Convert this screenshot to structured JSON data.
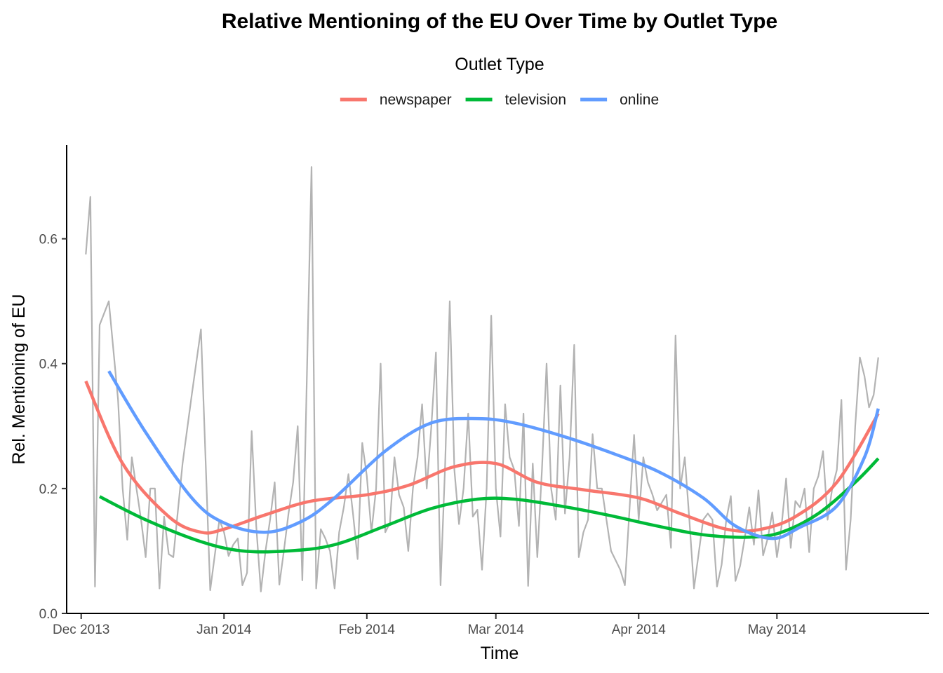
{
  "chart_data": {
    "type": "line",
    "title": "Relative Mentioning of the EU Over Time by Outlet Type",
    "xlabel": "Time",
    "ylabel": "Rel. Mentioning of EU",
    "legend": {
      "title": "Outlet Type",
      "position": "top"
    },
    "xlim": [
      "2013-11-28",
      "2014-06-03"
    ],
    "ylim": [
      0,
      0.75
    ],
    "x_ticks": [
      "2013-12-01",
      "2014-01-01",
      "2014-02-01",
      "2014-03-01",
      "2014-04-01",
      "2014-05-01"
    ],
    "x_tick_labels": [
      "Dec 2013",
      "Jan 2014",
      "Feb 2014",
      "Mar 2014",
      "Apr 2014",
      "May 2014"
    ],
    "y_ticks": [
      0,
      0.2,
      0.4,
      0.6
    ],
    "y_tick_labels": [
      "0.0",
      "0.2",
      "0.4",
      "0.6"
    ],
    "grid": false,
    "raw_series": {
      "color": "#b3b3b3",
      "x": [
        "2013-12-02",
        "2013-12-03",
        "2013-12-04",
        "2013-12-05",
        "2013-12-07",
        "2013-12-09",
        "2013-12-10",
        "2013-12-11",
        "2013-12-12",
        "2013-12-14",
        "2013-12-15",
        "2013-12-16",
        "2013-12-17",
        "2013-12-18",
        "2013-12-19",
        "2013-12-20",
        "2013-12-21",
        "2013-12-23",
        "2013-12-25",
        "2013-12-27",
        "2013-12-29",
        "2013-12-31",
        "2014-01-01",
        "2014-01-02",
        "2014-01-03",
        "2014-01-04",
        "2014-01-05",
        "2014-01-06",
        "2014-01-07",
        "2014-01-08",
        "2014-01-09",
        "2014-01-10",
        "2014-01-11",
        "2014-01-12",
        "2014-01-13",
        "2014-01-14",
        "2014-01-15",
        "2014-01-16",
        "2014-01-17",
        "2014-01-18",
        "2014-01-20",
        "2014-01-21",
        "2014-01-22",
        "2014-01-23",
        "2014-01-24",
        "2014-01-25",
        "2014-01-26",
        "2014-01-27",
        "2014-01-28",
        "2014-01-29",
        "2014-01-30",
        "2014-01-31",
        "2014-02-01",
        "2014-02-02",
        "2014-02-03",
        "2014-02-04",
        "2014-02-05",
        "2014-02-06",
        "2014-02-07",
        "2014-02-08",
        "2014-02-09",
        "2014-02-10",
        "2014-02-11",
        "2014-02-12",
        "2014-02-13",
        "2014-02-14",
        "2014-02-15",
        "2014-02-16",
        "2014-02-17",
        "2014-02-18",
        "2014-02-19",
        "2014-02-20",
        "2014-02-21",
        "2014-02-22",
        "2014-02-23",
        "2014-02-24",
        "2014-02-25",
        "2014-02-26",
        "2014-02-27",
        "2014-02-28",
        "2014-03-01",
        "2014-03-02",
        "2014-03-03",
        "2014-03-04",
        "2014-03-05",
        "2014-03-06",
        "2014-03-07",
        "2014-03-08",
        "2014-03-09",
        "2014-03-10",
        "2014-03-11",
        "2014-03-12",
        "2014-03-13",
        "2014-03-14",
        "2014-03-15",
        "2014-03-16",
        "2014-03-17",
        "2014-03-18",
        "2014-03-19",
        "2014-03-20",
        "2014-03-21",
        "2014-03-22",
        "2014-03-23",
        "2014-03-24",
        "2014-03-26",
        "2014-03-28",
        "2014-03-29",
        "2014-03-31",
        "2014-04-01",
        "2014-04-02",
        "2014-04-03",
        "2014-04-04",
        "2014-04-05",
        "2014-04-07",
        "2014-04-08",
        "2014-04-09",
        "2014-04-10",
        "2014-04-11",
        "2014-04-12",
        "2014-04-13",
        "2014-04-15",
        "2014-04-16",
        "2014-04-17",
        "2014-04-18",
        "2014-04-19",
        "2014-04-20",
        "2014-04-21",
        "2014-04-22",
        "2014-04-23",
        "2014-04-24",
        "2014-04-25",
        "2014-04-26",
        "2014-04-27",
        "2014-04-28",
        "2014-04-29",
        "2014-04-30",
        "2014-05-01",
        "2014-05-02",
        "2014-05-03",
        "2014-05-04",
        "2014-05-05",
        "2014-05-06",
        "2014-05-07",
        "2014-05-08",
        "2014-05-09",
        "2014-05-10",
        "2014-05-11",
        "2014-05-12",
        "2014-05-13",
        "2014-05-14",
        "2014-05-15",
        "2014-05-16",
        "2014-05-17",
        "2014-05-18",
        "2014-05-19",
        "2014-05-20",
        "2014-05-21",
        "2014-05-22",
        "2014-05-23"
      ],
      "y": [
        0.575,
        0.667,
        0.043,
        0.462,
        0.5,
        0.343,
        0.2,
        0.118,
        0.25,
        0.15,
        0.09,
        0.2,
        0.2,
        0.04,
        0.155,
        0.095,
        0.09,
        0.24,
        0.35,
        0.455,
        0.037,
        0.15,
        0.13,
        0.092,
        0.11,
        0.12,
        0.045,
        0.065,
        0.292,
        0.14,
        0.035,
        0.1,
        0.15,
        0.21,
        0.046,
        0.1,
        0.16,
        0.21,
        0.3,
        0.053,
        0.715,
        0.04,
        0.135,
        0.12,
        0.1,
        0.04,
        0.13,
        0.17,
        0.223,
        0.16,
        0.087,
        0.273,
        0.22,
        0.13,
        0.2,
        0.4,
        0.13,
        0.145,
        0.25,
        0.19,
        0.17,
        0.1,
        0.2,
        0.25,
        0.335,
        0.2,
        0.3,
        0.418,
        0.045,
        0.24,
        0.5,
        0.23,
        0.143,
        0.2,
        0.32,
        0.155,
        0.166,
        0.07,
        0.2,
        0.477,
        0.2,
        0.123,
        0.335,
        0.25,
        0.23,
        0.14,
        0.32,
        0.044,
        0.24,
        0.09,
        0.23,
        0.4,
        0.2,
        0.15,
        0.365,
        0.16,
        0.25,
        0.43,
        0.09,
        0.13,
        0.15,
        0.287,
        0.2,
        0.2,
        0.1,
        0.07,
        0.045,
        0.286,
        0.15,
        0.25,
        0.21,
        0.19,
        0.165,
        0.19,
        0.105,
        0.445,
        0.2,
        0.25,
        0.15,
        0.04,
        0.15,
        0.16,
        0.15,
        0.043,
        0.078,
        0.15,
        0.188,
        0.052,
        0.076,
        0.12,
        0.17,
        0.11,
        0.197,
        0.093,
        0.12,
        0.162,
        0.09,
        0.14,
        0.216,
        0.105,
        0.18,
        0.17,
        0.2,
        0.098,
        0.2,
        0.22,
        0.26,
        0.15,
        0.2,
        0.23,
        0.342,
        0.07,
        0.15,
        0.3,
        0.41,
        0.38,
        0.33,
        0.35,
        0.41
      ]
    },
    "series": [
      {
        "name": "newspaper",
        "color": "#F8766D",
        "x": [
          "2013-12-02",
          "2013-12-10",
          "2013-12-20",
          "2013-12-27",
          "2014-01-01",
          "2014-01-10",
          "2014-01-20",
          "2014-02-01",
          "2014-02-10",
          "2014-02-20",
          "2014-03-01",
          "2014-03-10",
          "2014-03-20",
          "2014-04-01",
          "2014-04-10",
          "2014-04-20",
          "2014-04-27",
          "2014-05-05",
          "2014-05-14",
          "2014-05-23"
        ],
        "y": [
          0.372,
          0.24,
          0.155,
          0.13,
          0.135,
          0.158,
          0.18,
          0.19,
          0.205,
          0.235,
          0.24,
          0.21,
          0.198,
          0.185,
          0.16,
          0.135,
          0.134,
          0.155,
          0.21,
          0.32
        ]
      },
      {
        "name": "television",
        "color": "#00BA38",
        "x": [
          "2013-12-05",
          "2013-12-15",
          "2013-12-27",
          "2014-01-05",
          "2014-01-15",
          "2014-01-25",
          "2014-02-05",
          "2014-02-15",
          "2014-02-25",
          "2014-03-05",
          "2014-03-15",
          "2014-03-25",
          "2014-04-05",
          "2014-04-15",
          "2014-04-25",
          "2014-05-02",
          "2014-05-10",
          "2014-05-18",
          "2014-05-23"
        ],
        "y": [
          0.187,
          0.15,
          0.115,
          0.1,
          0.1,
          0.11,
          0.14,
          0.168,
          0.183,
          0.183,
          0.172,
          0.158,
          0.14,
          0.126,
          0.122,
          0.13,
          0.16,
          0.21,
          0.248
        ]
      },
      {
        "name": "online",
        "color": "#619CFF",
        "x": [
          "2013-12-07",
          "2013-12-15",
          "2013-12-25",
          "2014-01-01",
          "2014-01-10",
          "2014-01-18",
          "2014-01-25",
          "2014-02-05",
          "2014-02-15",
          "2014-02-25",
          "2014-03-05",
          "2014-03-15",
          "2014-03-25",
          "2014-04-05",
          "2014-04-15",
          "2014-04-22",
          "2014-04-30",
          "2014-05-06",
          "2014-05-14",
          "2014-05-20",
          "2014-05-23"
        ],
        "y": [
          0.388,
          0.29,
          0.185,
          0.145,
          0.13,
          0.148,
          0.185,
          0.26,
          0.305,
          0.312,
          0.305,
          0.285,
          0.26,
          0.228,
          0.185,
          0.14,
          0.12,
          0.138,
          0.172,
          0.25,
          0.328
        ]
      }
    ]
  }
}
